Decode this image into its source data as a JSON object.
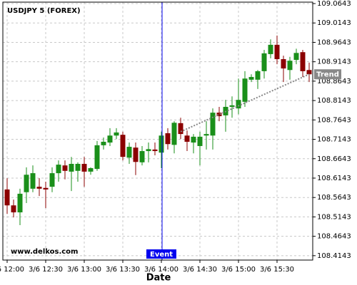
{
  "chart_data": {
    "type": "candlestick",
    "title": "USDJPY 5 (FOREX)",
    "watermark": "www.delkos.com",
    "x_label": "Date",
    "categories": [
      "3/6 12:00",
      null,
      null,
      null,
      null,
      null,
      "3/6 12:30",
      null,
      null,
      null,
      null,
      null,
      "3/6 13:00",
      null,
      null,
      null,
      null,
      null,
      "3/6 13:30",
      null,
      null,
      null,
      null,
      null,
      "3/6 14:00",
      null,
      null,
      null,
      null,
      null,
      "3/6 14:30",
      null,
      null,
      null,
      null,
      null,
      "3/6 15:00",
      null,
      null,
      null,
      null,
      null,
      "3/6 15:30",
      null,
      null,
      null,
      null,
      null
    ],
    "open": [
      108.585,
      108.544,
      108.526,
      108.578,
      108.587,
      108.592,
      108.589,
      108.592,
      108.627,
      108.647,
      108.631,
      108.633,
      108.651,
      108.631,
      108.638,
      108.699,
      108.706,
      108.724,
      108.726,
      108.667,
      108.693,
      108.655,
      108.684,
      108.688,
      108.68,
      108.73,
      108.7,
      108.756,
      108.724,
      108.706,
      108.697,
      108.724,
      108.724,
      108.783,
      108.776,
      108.798,
      108.794,
      108.811,
      108.868,
      108.868,
      108.89,
      108.934,
      108.958,
      108.921,
      108.893,
      108.919,
      108.939,
      108.893
    ],
    "high": [
      108.614,
      108.559,
      108.587,
      108.642,
      108.647,
      108.614,
      108.605,
      108.642,
      108.66,
      108.66,
      108.669,
      108.655,
      108.669,
      108.642,
      108.71,
      108.719,
      108.743,
      108.743,
      108.734,
      108.706,
      108.706,
      108.697,
      108.706,
      108.706,
      108.734,
      108.743,
      108.761,
      108.77,
      108.737,
      108.728,
      108.734,
      108.761,
      108.794,
      108.798,
      108.816,
      108.825,
      108.871,
      108.89,
      108.882,
      108.893,
      108.945,
      108.972,
      108.982,
      108.93,
      108.927,
      108.948,
      108.945,
      108.912
    ],
    "low": [
      108.522,
      108.513,
      108.493,
      108.55,
      108.578,
      108.568,
      108.537,
      108.578,
      108.605,
      108.611,
      108.581,
      108.605,
      108.592,
      108.623,
      108.633,
      108.688,
      108.697,
      108.715,
      108.66,
      108.651,
      108.622,
      108.647,
      108.655,
      108.673,
      108.64,
      108.688,
      108.678,
      108.715,
      108.684,
      108.678,
      108.647,
      108.688,
      108.688,
      108.761,
      108.734,
      108.77,
      108.779,
      108.798,
      108.862,
      108.844,
      108.871,
      108.923,
      108.908,
      108.862,
      108.868,
      108.908,
      108.875,
      108.862
    ],
    "close": [
      108.544,
      108.526,
      108.574,
      108.623,
      108.627,
      108.587,
      108.585,
      108.627,
      108.649,
      108.633,
      108.651,
      108.651,
      108.631,
      108.64,
      108.699,
      108.708,
      108.724,
      108.732,
      108.669,
      108.695,
      108.656,
      108.684,
      108.689,
      108.684,
      108.724,
      108.702,
      108.757,
      108.728,
      108.708,
      108.721,
      108.721,
      108.728,
      108.783,
      108.774,
      108.798,
      108.802,
      108.816,
      108.871,
      108.875,
      108.89,
      108.936,
      108.958,
      108.921,
      108.897,
      108.917,
      108.937,
      108.89,
      108.882
    ],
    "up_color": "#1a8f1a",
    "down_color": "#8b0000",
    "event": {
      "label": "Event",
      "x": 24,
      "color": "#0000ee"
    },
    "trend": {
      "label": "Trend",
      "x": [
        27,
        47
      ],
      "values": [
        108.734,
        108.882
      ],
      "color": "#888888"
    },
    "ylim": [
      108.403,
      109.068
    ],
    "yticks": [
      109.0643,
      109.0143,
      108.9643,
      108.9143,
      108.8643,
      108.8143,
      108.7643,
      108.7143,
      108.6643,
      108.6143,
      108.5643,
      108.5143,
      108.4643,
      108.4143
    ],
    "grid": true
  }
}
